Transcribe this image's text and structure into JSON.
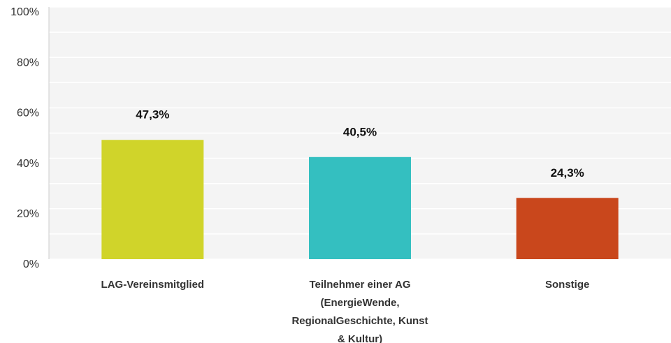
{
  "chart_data": {
    "type": "bar",
    "categories": [
      "LAG-Vereinsmitglied",
      "Teilnehmer einer AG (EnergieWende, RegionalGeschichte, Kunst & Kultur)",
      "Sonstige"
    ],
    "values": [
      47.3,
      40.5,
      24.3
    ],
    "value_labels": [
      "47,3%",
      "40,5%",
      "24,3%"
    ],
    "colors": [
      "#d0d42a",
      "#34bfc0",
      "#c9471c"
    ],
    "ylim": [
      0,
      100
    ],
    "yticks": [
      {
        "value": 0,
        "label": "0%"
      },
      {
        "value": 20,
        "label": "20%"
      },
      {
        "value": 40,
        "label": "40%"
      },
      {
        "value": 60,
        "label": "60%"
      },
      {
        "value": 80,
        "label": "80%"
      },
      {
        "value": 100,
        "label": "100%"
      }
    ],
    "minor_yticks": [
      10,
      30,
      50,
      70,
      90
    ],
    "grid": true
  }
}
